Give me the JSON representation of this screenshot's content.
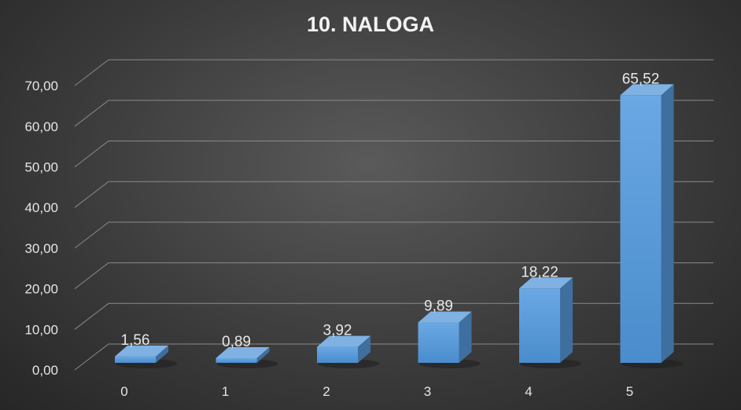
{
  "chart_data": {
    "type": "bar",
    "title": "10. NALOGA",
    "categories": [
      "0",
      "1",
      "2",
      "3",
      "4",
      "5"
    ],
    "values": [
      1.56,
      0.89,
      3.92,
      9.89,
      18.22,
      65.52
    ],
    "value_labels": [
      "1,56",
      "0,89",
      "3,92",
      "9,89",
      "18,22",
      "65,52"
    ],
    "y_ticks": [
      "0,00",
      "10,00",
      "20,00",
      "30,00",
      "40,00",
      "50,00",
      "60,00",
      "70,00"
    ],
    "ylim": [
      0,
      70
    ],
    "grid": true,
    "style": "3d-column",
    "colors": {
      "bar_front": "#5b9bd5",
      "bar_side": "#3f6f9f",
      "bar_top": "#7fb2e3",
      "grid": "#8a8a8a"
    }
  }
}
